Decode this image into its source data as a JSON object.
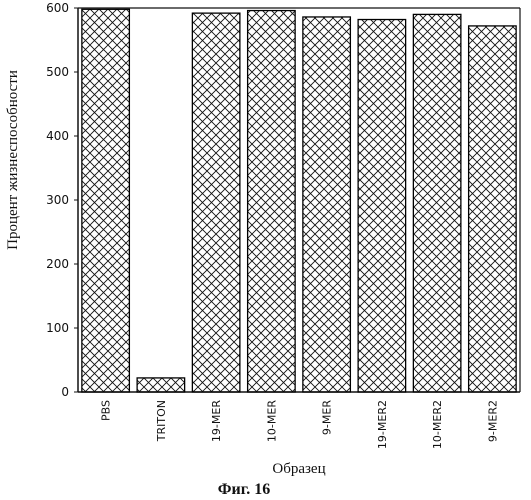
{
  "chart_data": {
    "type": "bar",
    "categories": [
      "PBS",
      "TRITON",
      "19-MER",
      "10-MER",
      "9-MER",
      "19-MER2",
      "10-MER2",
      "9-MER2"
    ],
    "values": [
      598,
      22,
      592,
      596,
      586,
      582,
      590,
      572
    ],
    "ylim": [
      0,
      600
    ],
    "yticks": [
      0,
      100,
      200,
      300,
      400,
      500,
      600
    ],
    "xlabel": "Образец",
    "ylabel": "Процент жизнеспособности",
    "grid": false,
    "bar_pattern": "cross-hatch",
    "bar_color": "#000000"
  },
  "caption": "Фиг. 16"
}
